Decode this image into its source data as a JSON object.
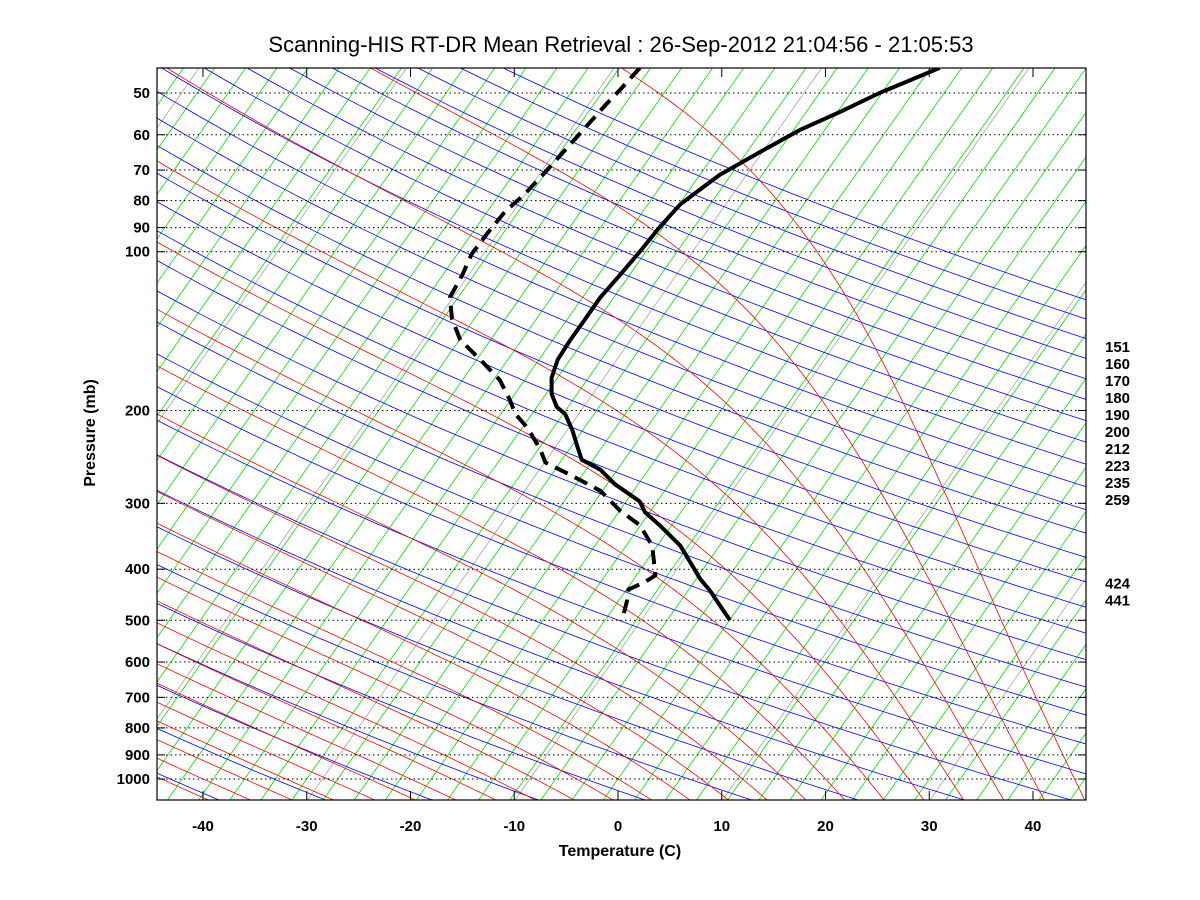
{
  "chart_data": {
    "type": "line",
    "subtype": "skew-t log-p diagram",
    "title": "Scanning-HIS RT-DR Mean Retrieval : 26-Sep-2012 21:04:56 - 21:05:53",
    "xlabel": "Temperature (C)",
    "ylabel": "Pressure (mb)",
    "xlim": [
      -44.5,
      45
    ],
    "ylim_pressure": [
      1100,
      45
    ],
    "y_scale": "log",
    "x_ticks": [
      "-40",
      "-30",
      "-20",
      "-10",
      "0",
      "10",
      "20",
      "30",
      "40"
    ],
    "x_tick_values": [
      -40,
      -30,
      -20,
      -10,
      0,
      10,
      20,
      30,
      40
    ],
    "y_ticks": [
      "50",
      "60",
      "70",
      "80",
      "90",
      "100",
      "200",
      "300",
      "400",
      "500",
      "600",
      "700",
      "800",
      "900",
      "1000"
    ],
    "y_tick_values": [
      50,
      60,
      70,
      80,
      90,
      100,
      200,
      300,
      400,
      500,
      600,
      700,
      800,
      900,
      1000
    ],
    "grid": "horizontal dotted at pressure ticks",
    "right_labels": [
      "151",
      "160",
      "170",
      "180",
      "190",
      "200",
      "212",
      "223",
      "235",
      "259",
      "424",
      "441"
    ],
    "background_lines": {
      "dry_adiabats_color": "#0000ff",
      "moist_adiabats_color": "#ff0000",
      "isotherms_color": "#00dd00",
      "secondary_lines_color": "#999999"
    },
    "series": [
      {
        "name": "Temperature",
        "style": "solid",
        "color": "#000000",
        "points_pressure_x": [
          [
            44.8,
            31.0
          ],
          [
            50,
            25.2
          ],
          [
            54.3,
            21.4
          ],
          [
            58.8,
            17.5
          ],
          [
            64.7,
            13.7
          ],
          [
            71.5,
            9.8
          ],
          [
            76.2,
            7.9
          ],
          [
            81.3,
            6.0
          ],
          [
            89.9,
            4.0
          ],
          [
            100,
            2.1
          ],
          [
            110.6,
            0.2
          ],
          [
            122,
            -1.7
          ],
          [
            136.3,
            -3.4
          ],
          [
            147,
            -4.6
          ],
          [
            160,
            -5.8
          ],
          [
            173.5,
            -6.4
          ],
          [
            186,
            -6.4
          ],
          [
            197,
            -5.9
          ],
          [
            203,
            -5.1
          ],
          [
            218,
            -4.4
          ],
          [
            234.5,
            -3.9
          ],
          [
            248,
            -3.5
          ],
          [
            259,
            -1.7
          ],
          [
            276,
            -0.3
          ],
          [
            297.6,
            2.1
          ],
          [
            312,
            2.6
          ],
          [
            330,
            4.0
          ],
          [
            361,
            6.0
          ],
          [
            395,
            7.2
          ],
          [
            417,
            7.9
          ],
          [
            440,
            8.9
          ],
          [
            468,
            9.8
          ],
          [
            500,
            10.8
          ]
        ]
      },
      {
        "name": "Dewpoint",
        "style": "dashed",
        "color": "#000000",
        "points_pressure_x": [
          [
            44.8,
            2.1
          ],
          [
            49.3,
            0.2
          ],
          [
            52.7,
            -1.2
          ],
          [
            61,
            -4.1
          ],
          [
            70.6,
            -7.0
          ],
          [
            77.8,
            -9.0
          ],
          [
            84,
            -10.9
          ],
          [
            91.8,
            -12.5
          ],
          [
            101,
            -14.1
          ],
          [
            110.6,
            -15.0
          ],
          [
            122,
            -16.2
          ],
          [
            134,
            -16.0
          ],
          [
            147,
            -15.2
          ],
          [
            160,
            -13.3
          ],
          [
            175,
            -11.4
          ],
          [
            191.5,
            -10.4
          ],
          [
            203,
            -9.9
          ],
          [
            216,
            -8.7
          ],
          [
            237,
            -7.5
          ],
          [
            251,
            -7.0
          ],
          [
            265,
            -4.6
          ],
          [
            284,
            -1.7
          ],
          [
            310,
            0.2
          ],
          [
            330,
            2.1
          ],
          [
            361,
            3.3
          ],
          [
            411,
            3.6
          ],
          [
            423,
            2.6
          ],
          [
            437,
            1.0
          ],
          [
            457,
            0.9
          ],
          [
            490,
            0.5
          ]
        ]
      }
    ]
  }
}
